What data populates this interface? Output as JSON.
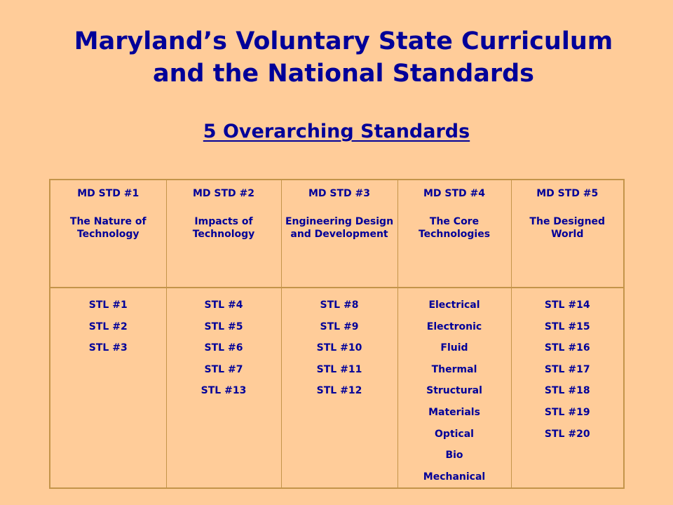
{
  "title": {
    "line1": "Maryland’s Voluntary State Curriculum",
    "line2": "and the National Standards"
  },
  "subtitle": "5 Overarching Standards",
  "columns": [
    {
      "std": "MD STD #1",
      "name": "The Nature of Technology",
      "items": [
        "STL #1",
        "STL #2",
        "STL #3"
      ]
    },
    {
      "std": "MD STD #2",
      "name": "Impacts of Technology",
      "items": [
        "STL #4",
        "STL #5",
        "STL #6",
        "STL #7",
        "STL #13"
      ]
    },
    {
      "std": "MD STD #3",
      "name": "Engineering Design and Development",
      "items": [
        "STL #8",
        "STL #9",
        "STL #10",
        "STL #11",
        "STL #12"
      ]
    },
    {
      "std": "MD STD #4",
      "name": "The Core Technologies",
      "items": [
        "Electrical",
        "Electronic",
        "Fluid",
        "Thermal",
        "Structural",
        "Materials",
        "Optical",
        "Bio",
        "Mechanical"
      ]
    },
    {
      "std": "MD STD #5",
      "name": "The Designed World",
      "items": [
        "STL #14",
        "STL #15",
        "STL #16",
        "STL #17",
        "STL #18",
        "STL #19",
        "STL #20"
      ]
    }
  ],
  "colors": {
    "background": "#FFCC99",
    "text": "#000099",
    "border": "#C4944A"
  }
}
